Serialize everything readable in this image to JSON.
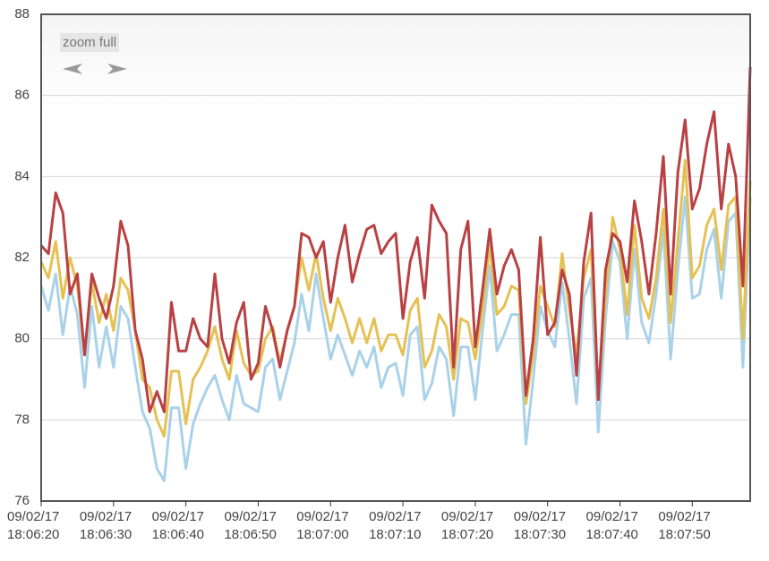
{
  "controls": {
    "zoom": "zoom full"
  },
  "chart_data": {
    "type": "line",
    "x": [
      "09/02/17 18:06:20",
      "09/02/17 18:06:21",
      "09/02/17 18:06:22",
      "09/02/17 18:06:23",
      "09/02/17 18:06:24",
      "09/02/17 18:06:25",
      "09/02/17 18:06:26",
      "09/02/17 18:06:27",
      "09/02/17 18:06:28",
      "09/02/17 18:06:29",
      "09/02/17 18:06:30",
      "09/02/17 18:06:31",
      "09/02/17 18:06:32",
      "09/02/17 18:06:33",
      "09/02/17 18:06:34",
      "09/02/17 18:06:35",
      "09/02/17 18:06:36",
      "09/02/17 18:06:37",
      "09/02/17 18:06:38",
      "09/02/17 18:06:39",
      "09/02/17 18:06:40",
      "09/02/17 18:06:41",
      "09/02/17 18:06:42",
      "09/02/17 18:06:43",
      "09/02/17 18:06:44",
      "09/02/17 18:06:45",
      "09/02/17 18:06:46",
      "09/02/17 18:06:47",
      "09/02/17 18:06:48",
      "09/02/17 18:06:49",
      "09/02/17 18:06:50",
      "09/02/17 18:06:51",
      "09/02/17 18:06:52",
      "09/02/17 18:06:53",
      "09/02/17 18:06:54",
      "09/02/17 18:06:55",
      "09/02/17 18:06:56",
      "09/02/17 18:06:57",
      "09/02/17 18:06:58",
      "09/02/17 18:06:59",
      "09/02/17 18:07:00",
      "09/02/17 18:07:01",
      "09/02/17 18:07:02",
      "09/02/17 18:07:03",
      "09/02/17 18:07:04",
      "09/02/17 18:07:05",
      "09/02/17 18:07:06",
      "09/02/17 18:07:07",
      "09/02/17 18:07:08",
      "09/02/17 18:07:09",
      "09/02/17 18:07:10",
      "09/02/17 18:07:11",
      "09/02/17 18:07:12",
      "09/02/17 18:07:13",
      "09/02/17 18:07:14",
      "09/02/17 18:07:15",
      "09/02/17 18:07:16",
      "09/02/17 18:07:17",
      "09/02/17 18:07:18",
      "09/02/17 18:07:19",
      "09/02/17 18:07:20",
      "09/02/17 18:07:21",
      "09/02/17 18:07:22",
      "09/02/17 18:07:23",
      "09/02/17 18:07:24",
      "09/02/17 18:07:25",
      "09/02/17 18:07:26",
      "09/02/17 18:07:27",
      "09/02/17 18:07:28",
      "09/02/17 18:07:29",
      "09/02/17 18:07:30",
      "09/02/17 18:07:31",
      "09/02/17 18:07:32",
      "09/02/17 18:07:33",
      "09/02/17 18:07:34",
      "09/02/17 18:07:35",
      "09/02/17 18:07:36",
      "09/02/17 18:07:37",
      "09/02/17 18:07:38",
      "09/02/17 18:07:39",
      "09/02/17 18:07:40",
      "09/02/17 18:07:41",
      "09/02/17 18:07:42",
      "09/02/17 18:07:43",
      "09/02/17 18:07:44",
      "09/02/17 18:07:45",
      "09/02/17 18:07:46",
      "09/02/17 18:07:47",
      "09/02/17 18:07:48",
      "09/02/17 18:07:49",
      "09/02/17 18:07:50",
      "09/02/17 18:07:51",
      "09/02/17 18:07:52",
      "09/02/17 18:07:53",
      "09/02/17 18:07:54",
      "09/02/17 18:07:55",
      "09/02/17 18:07:56",
      "09/02/17 18:07:57",
      "09/02/17 18:07:58"
    ],
    "series": [
      {
        "color": "#a9d2ea",
        "values": [
          81.3,
          80.7,
          81.6,
          80.1,
          81.3,
          80.6,
          78.8,
          80.8,
          79.3,
          80.3,
          79.3,
          80.8,
          80.5,
          79.3,
          78.2,
          77.8,
          76.8,
          76.5,
          78.3,
          78.3,
          76.8,
          77.9,
          78.4,
          78.8,
          79.1,
          78.5,
          78.0,
          79.1,
          78.4,
          78.3,
          78.2,
          79.3,
          79.5,
          78.5,
          79.2,
          79.9,
          81.1,
          80.2,
          81.6,
          80.5,
          79.5,
          80.1,
          79.6,
          79.1,
          79.7,
          79.3,
          79.8,
          78.8,
          79.3,
          79.4,
          78.6,
          80.1,
          80.3,
          78.5,
          78.9,
          79.8,
          79.5,
          78.1,
          79.8,
          79.8,
          78.5,
          80.2,
          81.8,
          79.7,
          80.1,
          80.6,
          80.6,
          77.4,
          79.0,
          80.8,
          80.2,
          79.8,
          81.4,
          80.0,
          78.4,
          81.0,
          81.5,
          77.7,
          80.5,
          82.4,
          81.9,
          80.0,
          82.2,
          80.4,
          79.9,
          81.1,
          82.7,
          79.5,
          81.7,
          83.5,
          81.0,
          81.1,
          82.2,
          82.7,
          81.0,
          82.9,
          83.1,
          79.3,
          83.5
        ]
      },
      {
        "color": "#e5c154",
        "values": [
          81.9,
          81.5,
          82.4,
          81.0,
          82.0,
          81.3,
          79.6,
          81.4,
          80.4,
          81.1,
          80.2,
          81.5,
          81.2,
          80.2,
          79.0,
          78.8,
          78.0,
          77.6,
          79.2,
          79.2,
          77.9,
          79.0,
          79.3,
          79.7,
          80.3,
          79.5,
          79.0,
          80.2,
          79.4,
          79.1,
          79.2,
          80.0,
          80.3,
          79.4,
          80.2,
          80.8,
          82.0,
          81.2,
          82.1,
          81.0,
          80.2,
          81.0,
          80.5,
          79.9,
          80.5,
          79.9,
          80.5,
          79.7,
          80.1,
          80.1,
          79.6,
          80.7,
          81.0,
          79.3,
          79.7,
          80.6,
          80.3,
          79.0,
          80.5,
          80.4,
          79.5,
          80.7,
          82.3,
          80.6,
          80.8,
          81.3,
          81.2,
          78.4,
          79.6,
          81.3,
          80.8,
          80.3,
          82.1,
          80.7,
          79.6,
          81.5,
          82.2,
          78.6,
          81.0,
          83.0,
          82.2,
          80.6,
          82.8,
          81.0,
          80.5,
          81.5,
          83.2,
          80.4,
          82.4,
          84.4,
          81.5,
          81.8,
          82.8,
          83.2,
          81.7,
          83.3,
          83.5,
          80.0,
          83.9
        ]
      },
      {
        "color": "#b94144",
        "values": [
          82.3,
          82.1,
          83.6,
          83.1,
          81.1,
          81.6,
          79.6,
          81.6,
          81.0,
          80.5,
          81.3,
          82.9,
          82.3,
          80.2,
          79.5,
          78.2,
          78.7,
          78.2,
          80.9,
          79.7,
          79.7,
          80.5,
          80.0,
          79.8,
          81.6,
          80.0,
          79.4,
          80.4,
          80.9,
          79.0,
          79.4,
          80.8,
          80.2,
          79.3,
          80.2,
          80.8,
          82.6,
          82.5,
          82.0,
          82.4,
          80.9,
          82.0,
          82.8,
          81.4,
          82.1,
          82.7,
          82.8,
          82.1,
          82.4,
          82.6,
          80.5,
          81.9,
          82.5,
          81.0,
          83.3,
          82.9,
          82.6,
          79.3,
          82.2,
          82.9,
          79.8,
          81.2,
          82.7,
          81.1,
          81.8,
          82.2,
          81.7,
          78.6,
          80.0,
          82.5,
          80.1,
          80.4,
          81.7,
          81.1,
          79.1,
          81.9,
          83.1,
          78.5,
          81.7,
          82.6,
          82.4,
          81.4,
          83.4,
          82.4,
          81.1,
          82.6,
          84.5,
          81.1,
          84.1,
          85.4,
          83.2,
          83.7,
          84.8,
          85.6,
          83.2,
          84.8,
          84.0,
          81.3,
          86.7
        ]
      }
    ],
    "xlim": [
      "09/02/17 18:06:20",
      "09/02/17 18:07:58"
    ],
    "xticks": [
      "09/02/17 18:06:20",
      "09/02/17 18:06:30",
      "09/02/17 18:06:40",
      "09/02/17 18:06:50",
      "09/02/17 18:07:00",
      "09/02/17 18:07:10",
      "09/02/17 18:07:20",
      "09/02/17 18:07:30",
      "09/02/17 18:07:40",
      "09/02/17 18:07:50"
    ],
    "ylim": [
      76,
      88
    ],
    "yticks": [
      76,
      78,
      80,
      82,
      84,
      86,
      88
    ],
    "grid": true
  }
}
